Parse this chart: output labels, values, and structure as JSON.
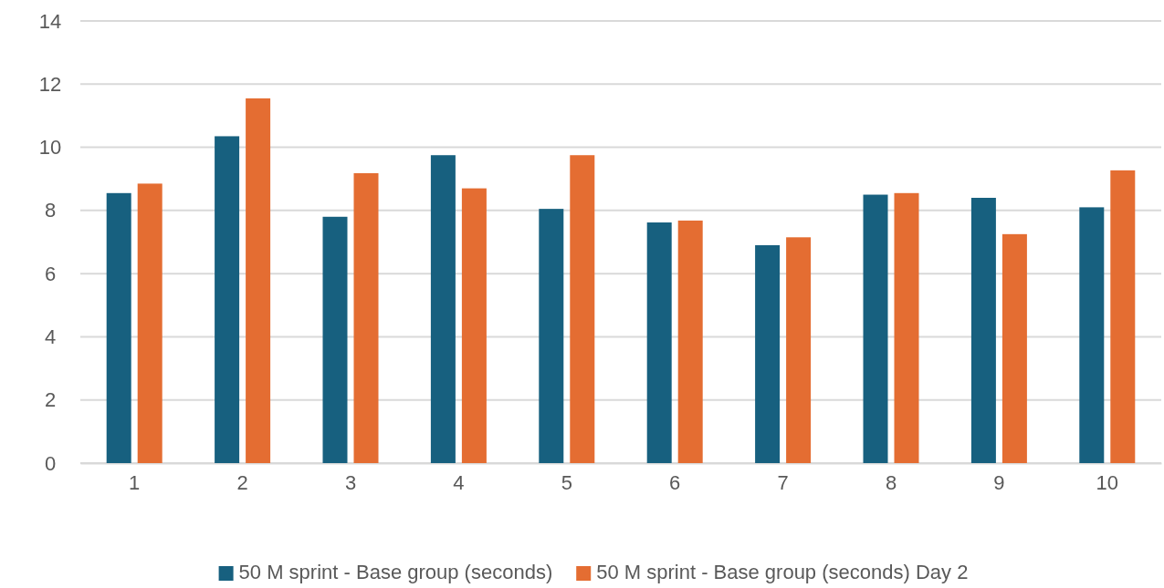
{
  "chart_data": {
    "type": "bar",
    "categories": [
      "1",
      "2",
      "3",
      "4",
      "5",
      "6",
      "7",
      "8",
      "9",
      "10"
    ],
    "series": [
      {
        "name": "50 M sprint - Base group (seconds)",
        "color": "#17607f",
        "values": [
          8.55,
          10.35,
          7.8,
          9.75,
          8.05,
          7.62,
          6.9,
          8.5,
          8.4,
          8.1
        ]
      },
      {
        "name": "50 M sprint - Base group (seconds) Day 2",
        "color": "#e46d32",
        "values": [
          8.85,
          11.55,
          9.18,
          8.7,
          9.75,
          7.68,
          7.15,
          8.55,
          7.25,
          9.27
        ]
      }
    ],
    "ylim": [
      0,
      14
    ],
    "yticks": [
      0,
      2,
      4,
      6,
      8,
      10,
      12,
      14
    ],
    "grid": "y",
    "legend": "bottom"
  }
}
